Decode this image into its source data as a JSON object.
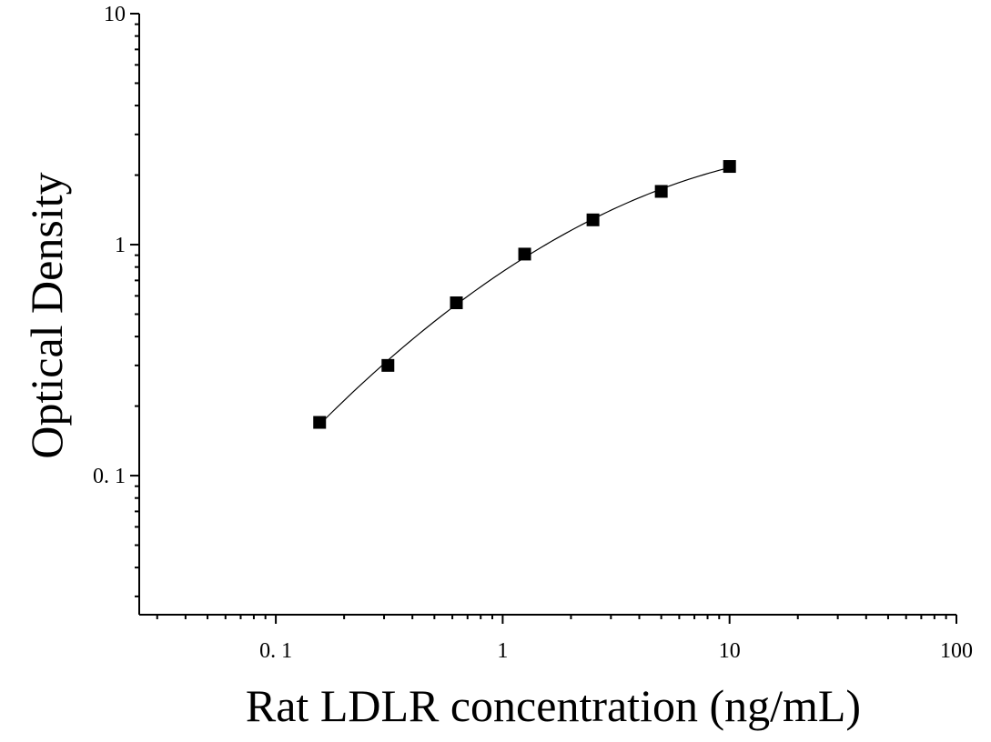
{
  "chart_data": {
    "type": "scatter",
    "xlabel": "Rat LDLR concentration (ng/mL)",
    "ylabel": "Optical Density",
    "x_scale": "log",
    "y_scale": "log",
    "xlim": [
      0.025,
      100
    ],
    "ylim": [
      0.025,
      10
    ],
    "x_ticks": [
      0.1,
      1,
      10,
      100
    ],
    "x_tick_labels": [
      "0. 1",
      "1",
      "10",
      "100"
    ],
    "y_ticks": [
      0.1,
      1,
      10
    ],
    "y_tick_labels": [
      "0. 1",
      "1",
      "10"
    ],
    "grid": false,
    "legend": "none",
    "points": {
      "x": [
        0.156,
        0.312,
        0.625,
        1.25,
        2.5,
        5,
        10
      ],
      "y": [
        0.17,
        0.3,
        0.56,
        0.91,
        1.28,
        1.7,
        2.18
      ]
    },
    "fit_curve": {
      "x_range": [
        0.16,
        10
      ]
    },
    "colors": {
      "points": "#000000",
      "curve": "#000000",
      "axes": "#000000"
    }
  }
}
